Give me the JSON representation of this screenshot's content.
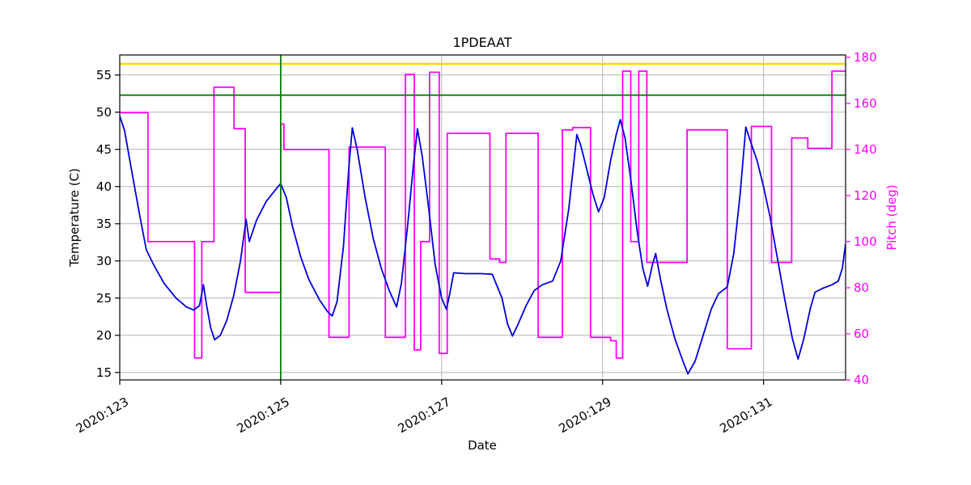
{
  "chart_data": {
    "type": "line",
    "title": "1PDEAAT",
    "xlabel": "Date",
    "ylabel_left": "Temperature (C)",
    "ylabel_right": "Pitch (deg)",
    "xlim": [
      123.0,
      132.02
    ],
    "ylim_left": [
      14.0,
      57.7
    ],
    "ylim_right": [
      40,
      181
    ],
    "grid": true,
    "x_ticks": [
      {
        "value": 123,
        "label": "2020:123"
      },
      {
        "value": 125,
        "label": "2020:125"
      },
      {
        "value": 127,
        "label": "2020:127"
      },
      {
        "value": 129,
        "label": "2020:129"
      },
      {
        "value": 131,
        "label": "2020:131"
      }
    ],
    "y_ticks_left": [
      15,
      20,
      25,
      30,
      35,
      40,
      45,
      50,
      55
    ],
    "y_ticks_right": [
      40,
      60,
      80,
      100,
      120,
      140,
      160,
      180
    ],
    "series": [
      {
        "name": "pitch",
        "axis": "right",
        "type": "step",
        "color": "#ff00ff",
        "points": [
          [
            123.0,
            156
          ],
          [
            123.35,
            100
          ],
          [
            123.93,
            49.5
          ],
          [
            124.02,
            100
          ],
          [
            124.17,
            167
          ],
          [
            124.42,
            149
          ],
          [
            124.56,
            78
          ],
          [
            125.0,
            151
          ],
          [
            125.04,
            140
          ],
          [
            125.6,
            58.5
          ],
          [
            125.85,
            141
          ],
          [
            126.3,
            58.5
          ],
          [
            126.55,
            172.5
          ],
          [
            126.66,
            53
          ],
          [
            126.74,
            100
          ],
          [
            126.85,
            173.5
          ],
          [
            126.97,
            51.5
          ],
          [
            127.07,
            147
          ],
          [
            127.6,
            92.5
          ],
          [
            127.72,
            91
          ],
          [
            127.8,
            147
          ],
          [
            128.2,
            58.5
          ],
          [
            128.5,
            148.5
          ],
          [
            128.63,
            149.5
          ],
          [
            128.85,
            58.5
          ],
          [
            129.1,
            57
          ],
          [
            129.17,
            49.5
          ],
          [
            129.25,
            174
          ],
          [
            129.35,
            100
          ],
          [
            129.45,
            174
          ],
          [
            129.55,
            91
          ],
          [
            130.05,
            148.5
          ],
          [
            130.55,
            53.5
          ],
          [
            130.85,
            150
          ],
          [
            131.1,
            91
          ],
          [
            131.35,
            145
          ],
          [
            131.55,
            140.5
          ],
          [
            131.85,
            174
          ]
        ]
      },
      {
        "name": "temperature",
        "axis": "left",
        "type": "line",
        "color": "#0000dd",
        "points": [
          [
            123.0,
            49.5
          ],
          [
            123.06,
            47.5
          ],
          [
            123.15,
            42.0
          ],
          [
            123.25,
            36.0
          ],
          [
            123.33,
            31.5
          ],
          [
            123.42,
            29.5
          ],
          [
            123.55,
            27.0
          ],
          [
            123.7,
            25.0
          ],
          [
            123.83,
            23.8
          ],
          [
            123.92,
            23.4
          ],
          [
            123.99,
            24.0
          ],
          [
            124.04,
            26.8
          ],
          [
            124.08,
            24.0
          ],
          [
            124.13,
            21.0
          ],
          [
            124.18,
            19.4
          ],
          [
            124.25,
            20.0
          ],
          [
            124.33,
            22.0
          ],
          [
            124.42,
            25.5
          ],
          [
            124.5,
            30.0
          ],
          [
            124.57,
            35.6
          ],
          [
            124.61,
            32.6
          ],
          [
            124.7,
            35.5
          ],
          [
            124.82,
            38.0
          ],
          [
            124.93,
            39.5
          ],
          [
            125.0,
            40.4
          ],
          [
            125.07,
            38.5
          ],
          [
            125.15,
            34.5
          ],
          [
            125.25,
            30.5
          ],
          [
            125.35,
            27.5
          ],
          [
            125.48,
            24.8
          ],
          [
            125.58,
            23.2
          ],
          [
            125.64,
            22.6
          ],
          [
            125.7,
            24.5
          ],
          [
            125.78,
            32.0
          ],
          [
            125.85,
            43.0
          ],
          [
            125.89,
            47.9
          ],
          [
            125.95,
            45.0
          ],
          [
            126.05,
            38.5
          ],
          [
            126.15,
            33.0
          ],
          [
            126.25,
            29.0
          ],
          [
            126.35,
            26.0
          ],
          [
            126.44,
            23.8
          ],
          [
            126.5,
            27.0
          ],
          [
            126.58,
            35.0
          ],
          [
            126.65,
            43.0
          ],
          [
            126.7,
            47.8
          ],
          [
            126.76,
            44.0
          ],
          [
            126.84,
            37.0
          ],
          [
            126.92,
            29.5
          ],
          [
            127.0,
            25.0
          ],
          [
            127.06,
            23.5
          ],
          [
            127.1,
            25.5
          ],
          [
            127.15,
            28.4
          ],
          [
            127.3,
            28.3
          ],
          [
            127.5,
            28.3
          ],
          [
            127.63,
            28.2
          ],
          [
            127.75,
            25.0
          ],
          [
            127.82,
            21.5
          ],
          [
            127.88,
            19.9
          ],
          [
            127.95,
            21.5
          ],
          [
            128.05,
            24.0
          ],
          [
            128.15,
            26.0
          ],
          [
            128.25,
            26.8
          ],
          [
            128.38,
            27.3
          ],
          [
            128.48,
            30.0
          ],
          [
            128.58,
            37.0
          ],
          [
            128.68,
            47.0
          ],
          [
            128.73,
            45.5
          ],
          [
            128.8,
            42.5
          ],
          [
            128.88,
            39.0
          ],
          [
            128.95,
            36.6
          ],
          [
            129.02,
            38.5
          ],
          [
            129.1,
            43.5
          ],
          [
            129.17,
            47.0
          ],
          [
            129.22,
            49.0
          ],
          [
            129.28,
            46.5
          ],
          [
            129.35,
            41.0
          ],
          [
            129.43,
            34.0
          ],
          [
            129.5,
            29.0
          ],
          [
            129.56,
            26.6
          ],
          [
            129.62,
            29.5
          ],
          [
            129.66,
            31.0
          ],
          [
            129.72,
            27.5
          ],
          [
            129.8,
            23.5
          ],
          [
            129.9,
            19.5
          ],
          [
            130.0,
            16.5
          ],
          [
            130.06,
            14.8
          ],
          [
            130.15,
            16.5
          ],
          [
            130.25,
            20.0
          ],
          [
            130.35,
            23.5
          ],
          [
            130.44,
            25.6
          ],
          [
            130.55,
            26.5
          ],
          [
            130.63,
            31.0
          ],
          [
            130.71,
            39.0
          ],
          [
            130.78,
            48.0
          ],
          [
            130.84,
            46.0
          ],
          [
            130.92,
            43.5
          ],
          [
            131.0,
            40.0
          ],
          [
            131.08,
            36.0
          ],
          [
            131.17,
            30.5
          ],
          [
            131.27,
            24.5
          ],
          [
            131.36,
            19.5
          ],
          [
            131.43,
            16.8
          ],
          [
            131.5,
            19.5
          ],
          [
            131.58,
            23.5
          ],
          [
            131.64,
            25.8
          ],
          [
            131.73,
            26.3
          ],
          [
            131.85,
            26.8
          ],
          [
            131.93,
            27.3
          ],
          [
            131.98,
            29.0
          ],
          [
            132.02,
            32.3
          ]
        ]
      }
    ],
    "reference_lines": [
      {
        "name": "yellow-limit-line",
        "orientation": "horizontal",
        "axis": "left",
        "value": 56.5,
        "color": "#ffd700",
        "width": 2.4
      },
      {
        "name": "green-limit-line",
        "orientation": "horizontal",
        "axis": "left",
        "value": 52.3,
        "color": "#008000",
        "width": 1.8
      },
      {
        "name": "green-vertical-marker",
        "orientation": "vertical",
        "value": 125.0,
        "color": "#008000",
        "width": 1.8
      }
    ]
  }
}
